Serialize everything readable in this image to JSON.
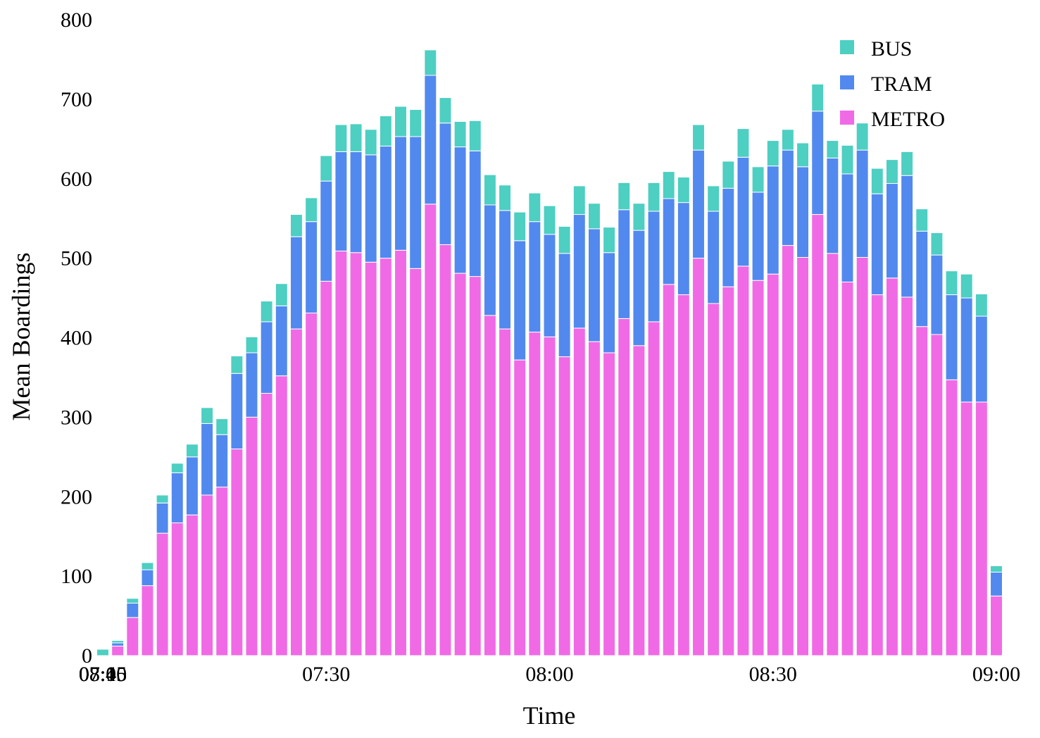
{
  "chart_data": {
    "type": "bar",
    "stacked": true,
    "title": "",
    "xlabel": "Time",
    "ylabel": "Mean Boardings",
    "ylim": [
      0,
      800
    ],
    "yticks": [
      0,
      100,
      200,
      300,
      400,
      500,
      600,
      700,
      800
    ],
    "xticks": [
      "07:00",
      "07:15",
      "07:30",
      "07:45",
      "08:00",
      "08:15",
      "08:30",
      "08:45",
      "09:00"
    ],
    "bin_minutes": 2,
    "grid": false,
    "legend_position": "top-right",
    "categories": [
      "07:00",
      "07:02",
      "07:04",
      "07:06",
      "07:08",
      "07:10",
      "07:12",
      "07:14",
      "07:16",
      "07:18",
      "07:20",
      "07:22",
      "07:24",
      "07:26",
      "07:28",
      "07:30",
      "07:32",
      "07:34",
      "07:36",
      "07:38",
      "07:40",
      "07:42",
      "07:44",
      "07:46",
      "07:48",
      "07:50",
      "07:52",
      "07:54",
      "07:56",
      "07:58",
      "08:00",
      "08:02",
      "08:04",
      "08:06",
      "08:08",
      "08:10",
      "08:12",
      "08:14",
      "08:16",
      "08:18",
      "08:20",
      "08:22",
      "08:24",
      "08:26",
      "08:28",
      "08:30",
      "08:32",
      "08:34",
      "08:36",
      "08:38",
      "08:40",
      "08:42",
      "08:44",
      "08:46",
      "08:48",
      "08:50",
      "08:52",
      "08:54",
      "08:56",
      "08:58",
      "09:00"
    ],
    "series": [
      {
        "name": "METRO",
        "color": "#f06ae6",
        "values": [
          0,
          12,
          48,
          88,
          154,
          167,
          177,
          202,
          212,
          260,
          300,
          330,
          352,
          411,
          431,
          471,
          509,
          507,
          495,
          500,
          510,
          487,
          568,
          517,
          481,
          477,
          428,
          411,
          372,
          407,
          401,
          376,
          412,
          395,
          381,
          424,
          390,
          420,
          467,
          454,
          500,
          443,
          464,
          490,
          472,
          480,
          516,
          501,
          555,
          506,
          470,
          501,
          454,
          475,
          451,
          414,
          404,
          347,
          319,
          319,
          75
        ]
      },
      {
        "name": "TRAM",
        "color": "#5289ef",
        "values": [
          0,
          4,
          18,
          20,
          38,
          63,
          73,
          90,
          66,
          95,
          81,
          90,
          88,
          116,
          115,
          126,
          125,
          127,
          135,
          141,
          143,
          166,
          162,
          153,
          159,
          158,
          139,
          149,
          150,
          139,
          129,
          130,
          143,
          142,
          126,
          137,
          145,
          139,
          108,
          116,
          136,
          116,
          124,
          137,
          111,
          136,
          120,
          114,
          130,
          120,
          136,
          135,
          127,
          119,
          153,
          120,
          100,
          107,
          131,
          108,
          30
        ]
      },
      {
        "name": "BUS",
        "color": "#4dcfc2",
        "values": [
          8,
          3,
          6,
          9,
          10,
          12,
          16,
          20,
          20,
          22,
          20,
          26,
          28,
          28,
          30,
          32,
          34,
          35,
          32,
          38,
          38,
          34,
          32,
          32,
          32,
          38,
          38,
          32,
          36,
          36,
          36,
          34,
          36,
          32,
          32,
          34,
          34,
          36,
          34,
          32,
          32,
          32,
          34,
          36,
          32,
          32,
          26,
          30,
          34,
          22,
          36,
          34,
          32,
          30,
          30,
          28,
          28,
          30,
          30,
          28,
          8
        ]
      }
    ]
  }
}
